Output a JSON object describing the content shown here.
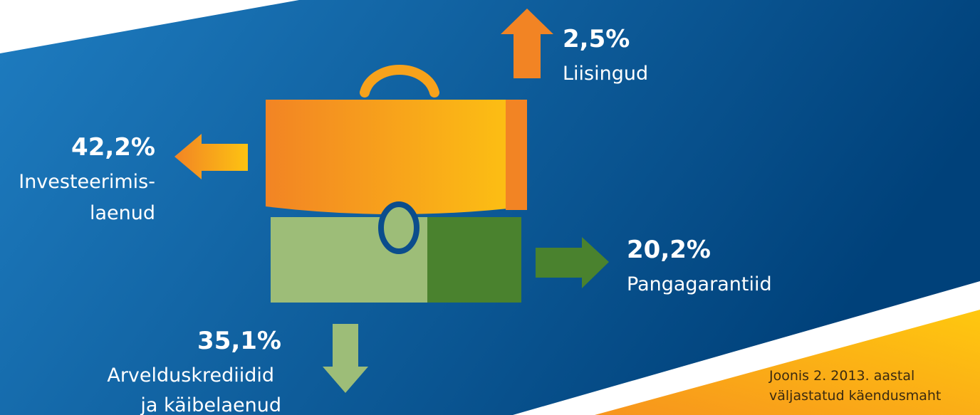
{
  "items": [
    {
      "value_label": "2,5%",
      "label": [
        "Liisingud"
      ]
    },
    {
      "value_label": "42,2%",
      "label": [
        "Investeerimis-",
        "laenud"
      ]
    },
    {
      "value_label": "20,2%",
      "label": [
        "Pangagarantiid"
      ]
    },
    {
      "value_label": "35,1%",
      "label": [
        "Arvelduskrediidid",
        "ja käibelaenud"
      ]
    }
  ],
  "caption": [
    "Joonis 2. 2013. aastal",
    "väljastatud käendusmaht"
  ]
}
